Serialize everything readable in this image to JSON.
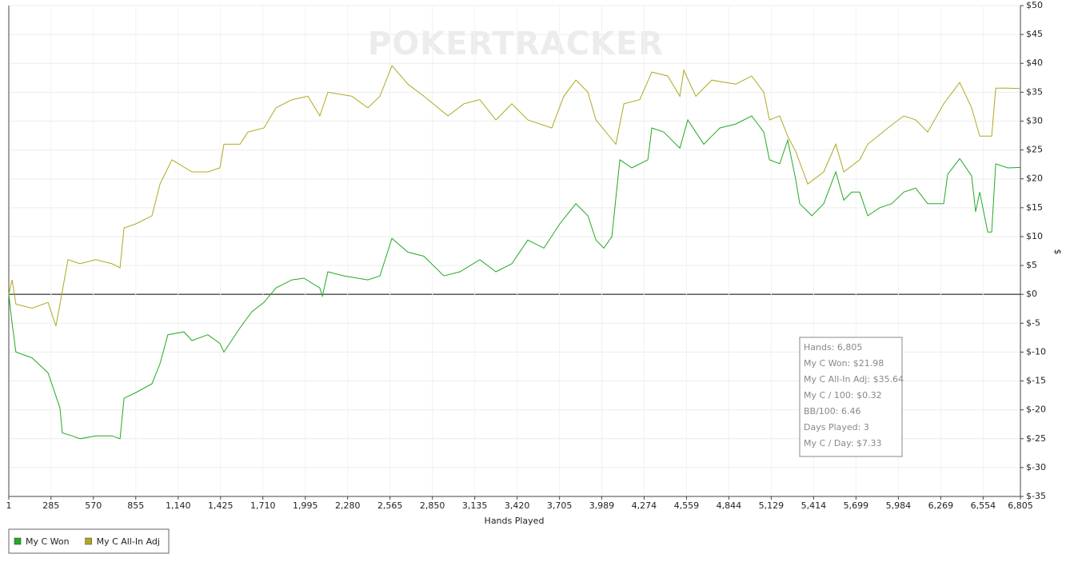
{
  "chart_data": {
    "type": "line",
    "watermark": "POKERTRACKER",
    "xlabel": "Hands Played",
    "ylabel": "$",
    "xlim": [
      1,
      6805
    ],
    "ylim": [
      -35,
      50
    ],
    "grid": true,
    "legend": "bottom-left",
    "xticks": [
      1,
      285,
      570,
      855,
      {
        "value": 1140,
        "label": "1,140"
      },
      {
        "value": 1425,
        "label": "1,425"
      },
      {
        "value": 1710,
        "label": "1,710"
      },
      {
        "value": 1995,
        "label": "1,995"
      },
      {
        "value": 2280,
        "label": "2,280"
      },
      {
        "value": 2565,
        "label": "2,565"
      },
      {
        "value": 2850,
        "label": "2,850"
      },
      {
        "value": 3135,
        "label": "3,135"
      },
      {
        "value": 3420,
        "label": "3,420"
      },
      {
        "value": 3705,
        "label": "3,705"
      },
      {
        "value": 3989,
        "label": "3,989"
      },
      {
        "value": 4274,
        "label": "4,274"
      },
      {
        "value": 4559,
        "label": "4,559"
      },
      {
        "value": 4844,
        "label": "4,844"
      },
      {
        "value": 5129,
        "label": "5,129"
      },
      {
        "value": 5414,
        "label": "5,414"
      },
      {
        "value": 5699,
        "label": "5,699"
      },
      {
        "value": 5984,
        "label": "5,984"
      },
      {
        "value": 6269,
        "label": "6,269"
      },
      {
        "value": 6554,
        "label": "6,554"
      },
      {
        "value": 6805,
        "label": "6,805"
      }
    ],
    "yticks": [
      {
        "value": 50,
        "label": "$50"
      },
      {
        "value": 45,
        "label": "$45"
      },
      {
        "value": 40,
        "label": "$40"
      },
      {
        "value": 35,
        "label": "$35"
      },
      {
        "value": 30,
        "label": "$30"
      },
      {
        "value": 25,
        "label": "$25"
      },
      {
        "value": 20,
        "label": "$20"
      },
      {
        "value": 15,
        "label": "$15"
      },
      {
        "value": 10,
        "label": "$10"
      },
      {
        "value": 5,
        "label": "$5"
      },
      {
        "value": 0,
        "label": "$0"
      },
      {
        "value": -5,
        "label": "$-5"
      },
      {
        "value": -10,
        "label": "$-10"
      },
      {
        "value": -15,
        "label": "$-15"
      },
      {
        "value": -20,
        "label": "$-20"
      },
      {
        "value": -25,
        "label": "$-25"
      },
      {
        "value": -30,
        "label": "$-30"
      },
      {
        "value": -35,
        "label": "$-35"
      }
    ],
    "series": [
      {
        "name": "My C Won",
        "color": "#22aa22",
        "x": [
          1,
          23,
          49,
          157,
          265,
          318,
          345,
          361,
          426,
          480,
          587,
          695,
          749,
          776,
          856,
          964,
          1018,
          1071,
          1179,
          1233,
          1340,
          1421,
          1448,
          1556,
          1636,
          1717,
          1798,
          1905,
          1986,
          2093,
          2110,
          2147,
          2255,
          2416,
          2497,
          2578,
          2685,
          2793,
          2927,
          3035,
          3169,
          3277,
          3384,
          3492,
          3600,
          3707,
          3815,
          3896,
          3950,
          4003,
          4057,
          4111,
          4191,
          4299,
          4326,
          4406,
          4514,
          4568,
          4675,
          4729,
          4783,
          4890,
          4998,
          5079,
          5117,
          5186,
          5240,
          5294,
          5321,
          5402,
          5482,
          5563,
          5617,
          5670,
          5724,
          5778,
          5859,
          5939,
          6020,
          6101,
          6181,
          6289,
          6316,
          6397,
          6477,
          6504,
          6531,
          6585,
          6612,
          6639,
          6720,
          6805
        ],
        "values": [
          0,
          -5,
          -10,
          -11,
          -13.6,
          -17.6,
          -19.7,
          -24,
          -24.5,
          -25,
          -24.5,
          -24.5,
          -25,
          -18,
          -17,
          -15.5,
          -12,
          -7,
          -6.5,
          -8,
          -7,
          -8.5,
          -10,
          -5.8,
          -3,
          -1.4,
          1.1,
          2.5,
          2.8,
          1.1,
          -0.3,
          3.9,
          3.2,
          2.5,
          3.2,
          9.7,
          7.3,
          6.6,
          3.2,
          3.9,
          6,
          3.9,
          5.3,
          9.4,
          8,
          12.2,
          15.7,
          13.6,
          9.4,
          8,
          10,
          23.3,
          21.9,
          23.3,
          28.8,
          28.1,
          25.3,
          30.2,
          26,
          27.4,
          28.8,
          29.5,
          30.9,
          28.1,
          23.3,
          22.6,
          26.7,
          19.8,
          15.7,
          13.6,
          15.7,
          21.2,
          16.3,
          17.7,
          17.7,
          13.6,
          15,
          15.7,
          17.7,
          18.4,
          15.7,
          15.7,
          20.8,
          23.5,
          20.5,
          14.3,
          17.7,
          10.8,
          10.8,
          22.6,
          21.9,
          21.98
        ]
      },
      {
        "name": "My C All-In Adj",
        "color": "#b0a820",
        "x": [
          1,
          23,
          49,
          157,
          265,
          318,
          345,
          399,
          480,
          587,
          695,
          749,
          776,
          856,
          964,
          1018,
          1098,
          1233,
          1340,
          1421,
          1448,
          1556,
          1609,
          1717,
          1798,
          1905,
          2013,
          2093,
          2147,
          2309,
          2416,
          2497,
          2578,
          2685,
          2793,
          2955,
          3062,
          3169,
          3277,
          3384,
          3492,
          3653,
          3734,
          3815,
          3896,
          3950,
          4084,
          4138,
          4245,
          4326,
          4433,
          4514,
          4541,
          4622,
          4729,
          4890,
          4998,
          5079,
          5117,
          5186,
          5240,
          5294,
          5375,
          5482,
          5563,
          5617,
          5724,
          5778,
          5913,
          6020,
          6101,
          6181,
          6289,
          6397,
          6477,
          6531,
          6612,
          6639,
          6720,
          6805
        ],
        "values": [
          0,
          2.5,
          -1.7,
          -2.4,
          -1.4,
          -5.5,
          -1.7,
          6,
          5.3,
          6,
          5.3,
          4.6,
          11.5,
          12.2,
          13.6,
          19.1,
          23.3,
          21.2,
          21.2,
          21.9,
          26,
          26,
          28.1,
          28.8,
          32.3,
          33.7,
          34.3,
          30.9,
          35,
          34.3,
          32.3,
          34.3,
          39.6,
          36.4,
          34.3,
          30.9,
          33,
          33.7,
          30.2,
          33,
          30.2,
          28.8,
          34.3,
          37.1,
          35,
          30.2,
          26,
          33,
          33.7,
          38.5,
          37.8,
          34.3,
          38.8,
          34.3,
          37.1,
          36.4,
          37.8,
          35,
          30.2,
          30.9,
          27.4,
          24.7,
          19.1,
          21.2,
          26,
          21.2,
          23.3,
          26,
          28.8,
          30.9,
          30.2,
          28.1,
          33,
          36.7,
          32.3,
          27.4,
          27.4,
          35.7,
          35.7,
          35.64
        ]
      }
    ],
    "tooltip": [
      "Hands: 6,805",
      "My C Won: $21.98",
      "My C All-In Adj: $35.64",
      "My C / 100: $0.32",
      "BB/100: 6.46",
      "Days Played: 3",
      "My C / Day: $7.33"
    ]
  }
}
